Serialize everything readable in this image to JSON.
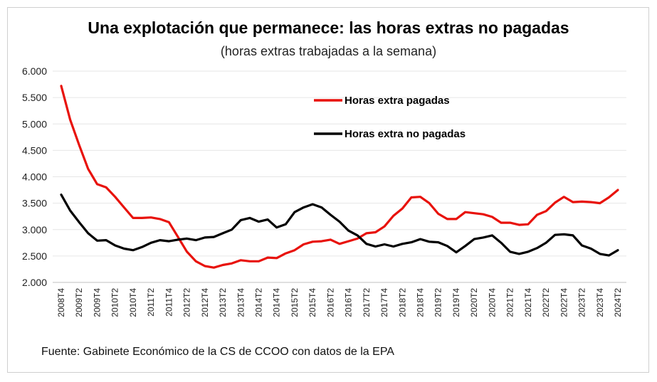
{
  "chart_data": {
    "type": "line",
    "title": "Una explotación que permanece: las horas extras no pagadas",
    "subtitle": "(horas extras trabajadas  a la semana)",
    "source": "Fuente: Gabinete Económico de la CS de CCOO con datos de la EPA",
    "ylim": [
      2000,
      6000
    ],
    "yticks": [
      2000,
      2500,
      3000,
      3500,
      4000,
      4500,
      5000,
      5500,
      6000
    ],
    "ytick_labels": [
      "2.000",
      "2.500",
      "3.000",
      "3.500",
      "4.000",
      "4.500",
      "5.000",
      "5.500",
      "6.000"
    ],
    "x": [
      "2008T4",
      "2009T1",
      "2009T2",
      "2009T3",
      "2009T4",
      "2010T1",
      "2010T2",
      "2010T3",
      "2010T4",
      "2011T1",
      "2011T2",
      "2011T3",
      "2011T4",
      "2012T1",
      "2012T2",
      "2012T3",
      "2012T4",
      "2013T1",
      "2013T2",
      "2013T3",
      "2013T4",
      "2014T1",
      "2014T2",
      "2014T3",
      "2014T4",
      "2015T1",
      "2015T2",
      "2015T3",
      "2015T4",
      "2016T1",
      "2016T2",
      "2016T3",
      "2016T4",
      "2017T1",
      "2017T2",
      "2017T3",
      "2017T4",
      "2018T1",
      "2018T2",
      "2018T3",
      "2018T4",
      "2019T1",
      "2019T2",
      "2019T3",
      "2019T4",
      "2020T1",
      "2020T2",
      "2020T3",
      "2020T4",
      "2021T1",
      "2021T2",
      "2021T3",
      "2021T4",
      "2022T1",
      "2022T2",
      "2022T3",
      "2022T4",
      "2023T1",
      "2023T2",
      "2023T3",
      "2023T4",
      "2024T1",
      "2024T2"
    ],
    "xtick_labels": [
      "2008T4",
      "2009T2",
      "2009T4",
      "2010T2",
      "2010T4",
      "2011T2",
      "2011T4",
      "2012T2",
      "2012T4",
      "2013T2",
      "2013T4",
      "2014T2",
      "2014T4",
      "2015T2",
      "2015T4",
      "2016T2",
      "2016T4",
      "2017T2",
      "2017T4",
      "2018T2",
      "2018T4",
      "2019T2",
      "2019T4",
      "2020T2",
      "2020T4",
      "2021T2",
      "2021T4",
      "2022T2",
      "2022T4",
      "2023T2",
      "2023T4",
      "2024T2"
    ],
    "legend_position": "top-right-inside",
    "series": [
      {
        "name": "Horas extra pagadas",
        "color": "#e8120c",
        "values": [
          5720,
          5080,
          4600,
          4150,
          3860,
          3800,
          3620,
          3420,
          3220,
          3220,
          3230,
          3200,
          3140,
          2860,
          2580,
          2400,
          2310,
          2280,
          2330,
          2360,
          2420,
          2400,
          2400,
          2470,
          2460,
          2550,
          2610,
          2720,
          2770,
          2780,
          2810,
          2730,
          2780,
          2830,
          2930,
          2950,
          3060,
          3260,
          3400,
          3610,
          3620,
          3500,
          3300,
          3200,
          3200,
          3330,
          3310,
          3290,
          3240,
          3130,
          3130,
          3090,
          3100,
          3280,
          3350,
          3510,
          3620,
          3520,
          3530,
          3520,
          3500,
          3610,
          3750
        ]
      },
      {
        "name": "Horas extra no pagadas",
        "color": "#000000",
        "values": [
          3660,
          3360,
          3140,
          2930,
          2790,
          2800,
          2700,
          2640,
          2610,
          2670,
          2750,
          2800,
          2780,
          2810,
          2830,
          2800,
          2850,
          2860,
          2930,
          3000,
          3180,
          3220,
          3150,
          3190,
          3040,
          3100,
          3330,
          3420,
          3480,
          3420,
          3280,
          3150,
          2980,
          2890,
          2730,
          2680,
          2720,
          2680,
          2730,
          2760,
          2820,
          2770,
          2760,
          2690,
          2570,
          2690,
          2820,
          2850,
          2890,
          2750,
          2580,
          2540,
          2580,
          2650,
          2750,
          2900,
          2910,
          2890,
          2700,
          2640,
          2540,
          2510,
          2610
        ]
      }
    ]
  }
}
